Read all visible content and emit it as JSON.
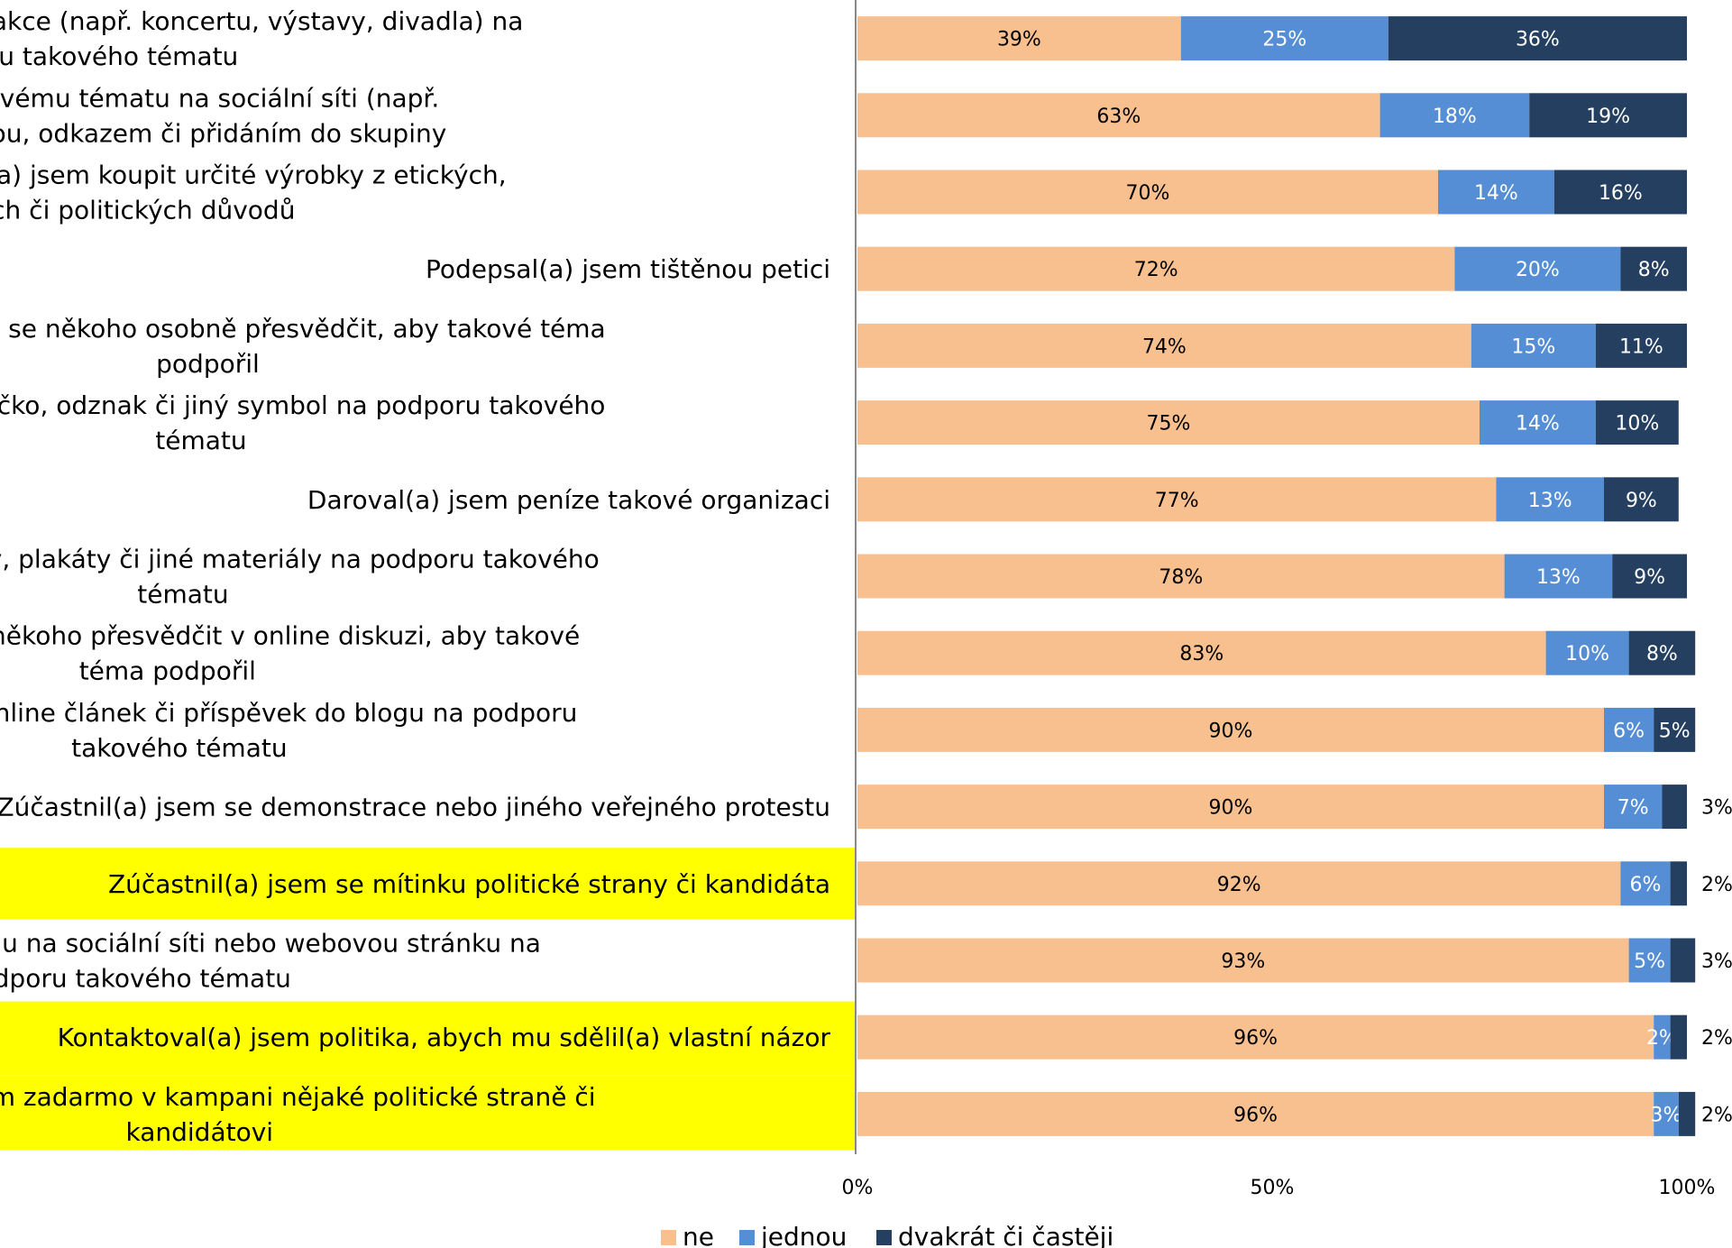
{
  "chart_data": {
    "type": "bar",
    "orientation": "horizontal",
    "stacked": true,
    "categories": [
      [
        "Zúčastnil(a) jsem se kulturní akce (např. koncertu, výstavy, divadla) na",
        "podporu takového tématu"
      ],
      [
        "Vyjádřila(a) jsem se k takovému tématu na sociální síti (např.",
        "Facebooku) statusem,  fotkou, odkazem či přidáním do skupiny"
      ],
      [
        "Koupil(a) jsem nebo odmítl(a) jsem koupit určité výrobky z etických,",
        "ekologických či politických důvodů"
      ],
      [
        "Podepsal(a) jsem tištěnou petici"
      ],
      [
        "Pokusil(a) jsem se někoho osobně přesvědčit, aby takové téma",
        "podpořil"
      ],
      [
        "Nosil(a) jsem tričko, odznak či jiný symbol na podporu takového",
        "tématu"
      ],
      [
        "Daroval(a) jsem peníze takové organizaci"
      ],
      [
        "Šířil(a) jsem letáky, plakáty či jiné materiály na podporu takového",
        "tématu"
      ],
      [
        "Pokusil(a) jsem se někoho přesvědčit v online diskuzi, aby takové",
        "téma podpořil"
      ],
      [
        "Napsal(a) jsem online článek či příspěvek do blogu na podporu",
        "takového tématu"
      ],
      [
        "Zúčastnil(a) jsem se demonstrace nebo jiného veřejného protestu"
      ],
      [
        "Zúčastnil(a) jsem se mítinku politické strany či kandidáta"
      ],
      [
        "Vytvořil(a) jsem skupinu na sociální síti nebo webovou stránku na",
        "podporu takového tématu"
      ],
      [
        "Kontaktoval(a) jsem politika, abych mu sdělil(a) vlastní názor"
      ],
      [
        "Pomáhal(a) jsem zadarmo v kampani nějaké politické straně či",
        "kandidátovi"
      ]
    ],
    "highlighted": [
      false,
      false,
      false,
      false,
      false,
      false,
      false,
      false,
      false,
      false,
      false,
      true,
      false,
      true,
      true
    ],
    "highlight_color": "#ffff00",
    "series": [
      {
        "name": "ne",
        "color": "#f9c08f",
        "values": [
          39,
          63,
          70,
          72,
          74,
          75,
          77,
          78,
          83,
          90,
          90,
          92,
          93,
          96,
          96
        ],
        "labels": [
          "39%",
          "63%",
          "70%",
          "72%",
          "74%",
          "75%",
          "77%",
          "78%",
          "83%",
          "90%",
          "90%",
          "92%",
          "93%",
          "96%",
          "96%"
        ]
      },
      {
        "name": "jednou",
        "color": "#558ed5",
        "values": [
          25,
          18,
          14,
          20,
          15,
          14,
          13,
          13,
          10,
          6,
          7,
          6,
          5,
          2,
          3
        ],
        "labels": [
          "25%",
          "18%",
          "14%",
          "20%",
          "15%",
          "14%",
          "13%",
          "13%",
          "10%",
          "6%",
          "7%",
          "6%",
          "5%",
          "2%",
          "3%"
        ]
      },
      {
        "name": "dvakrát či častěji",
        "color": "#243f60",
        "values": [
          36,
          19,
          16,
          8,
          11,
          10,
          9,
          9,
          8,
          5,
          3,
          2,
          3,
          2,
          2
        ],
        "labels": [
          "36%",
          "19%",
          "16%",
          "8%",
          "11%",
          "10%",
          "9%",
          "9%",
          "8%",
          "5%",
          "3%",
          "2%",
          "3%",
          "2%",
          "2%"
        ]
      }
    ],
    "outside_labels": [
      false,
      false,
      false,
      false,
      false,
      false,
      false,
      false,
      false,
      false,
      true,
      true,
      true,
      true,
      true
    ],
    "xlim": [
      0,
      100
    ],
    "xticks": [
      0,
      50,
      100
    ],
    "xtick_labels": [
      "0%",
      "50%",
      "100%"
    ],
    "grid": false,
    "legend_position": "bottom"
  }
}
